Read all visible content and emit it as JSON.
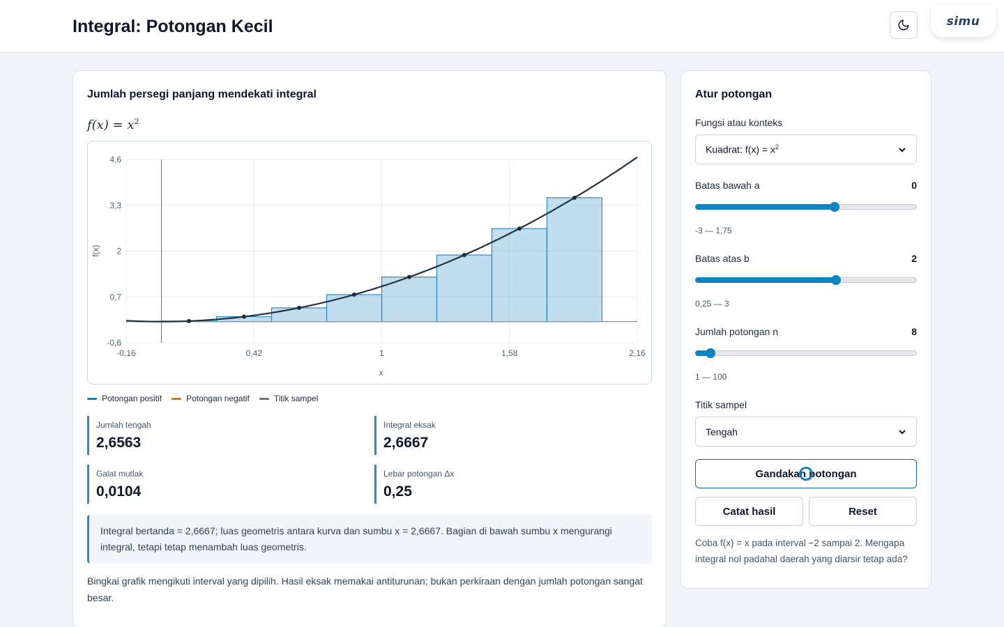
{
  "app": {
    "title": "Integral: Potongan Kecil",
    "brand": "simu"
  },
  "header": {
    "theme_icon": "moon-icon"
  },
  "left": {
    "title": "Jumlah persegi panjang mendekati integral",
    "formula_lhs": "f(x) = x",
    "formula_exp": "2",
    "legend": [
      {
        "label": "Potongan positif",
        "color": "#0b84c6"
      },
      {
        "label": "Potongan negatif",
        "color": "#d97706"
      },
      {
        "label": "Titik sampel",
        "color": "#6b7280"
      }
    ],
    "stats": {
      "sum_label": "Jumlah tengah",
      "sum_value": "2,6563",
      "exact_label": "Integral eksak",
      "exact_value": "2,6667",
      "error_label": "Galat mutlak",
      "error_value": "0,0104",
      "width_label": "Lebar potongan Δx",
      "width_value": "0,25"
    },
    "note": "Integral bertanda = 2,6667; luas geometris antara kurva dan sumbu x = 2,6667. Bagian di bawah sumbu x mengurangi integral, tetapi tetap menambah luas geometris.",
    "footnote": "Bingkai grafik mengikuti interval yang dipilih. Hasil eksak memakai antiturunan; bukan perkiraan dengan jumlah potongan sangat besar."
  },
  "right": {
    "title": "Atur potongan",
    "function_label": "Fungsi atau konteks",
    "function_value": "Kuadrat: f(x) = x",
    "function_sup": "2",
    "a_label": "Batas bawah a",
    "a_value": "0",
    "a_range": "-3 — 1,75",
    "a_fraction": 0.6286,
    "b_label": "Batas atas b",
    "b_value": "2",
    "b_range": "0,25 — 3",
    "b_fraction": 0.6364,
    "n_label": "Jumlah potongan n",
    "n_value": "8",
    "n_range": "1 — 100",
    "n_fraction": 0.0707,
    "sample_label": "Titik sampel",
    "sample_value": "Tengah",
    "double_button": "Gandakan potongan",
    "record_button": "Catat hasil",
    "reset_button": "Reset",
    "hint": "Coba f(x) = x pada interval −2 sampai 2. Mengapa integral nol padahal daerah yang diarsir tetap ada?"
  },
  "chart_data": {
    "type": "bar",
    "xlabel": "x",
    "ylabel": "f(x)",
    "xlim": [
      -0.16,
      2.16
    ],
    "ylim": [
      -0.6,
      4.6
    ],
    "x_ticks": [
      "-0,16",
      "0,42",
      "1",
      "1,58",
      "2,16"
    ],
    "y_ticks": [
      "4,6",
      "3,3",
      "2",
      "0,7",
      "-0,6"
    ],
    "grid": true,
    "function": "x^2",
    "rect_left_edges": [
      0,
      0.25,
      0.5,
      0.75,
      1,
      1.25,
      1.5,
      1.75
    ],
    "rect_width": 0.25,
    "sample_x": [
      0.125,
      0.375,
      0.625,
      0.875,
      1.125,
      1.375,
      1.625,
      1.875
    ],
    "values": [
      0.0156,
      0.1406,
      0.3906,
      0.7656,
      1.2656,
      1.8906,
      2.6406,
      3.5156
    ]
  }
}
